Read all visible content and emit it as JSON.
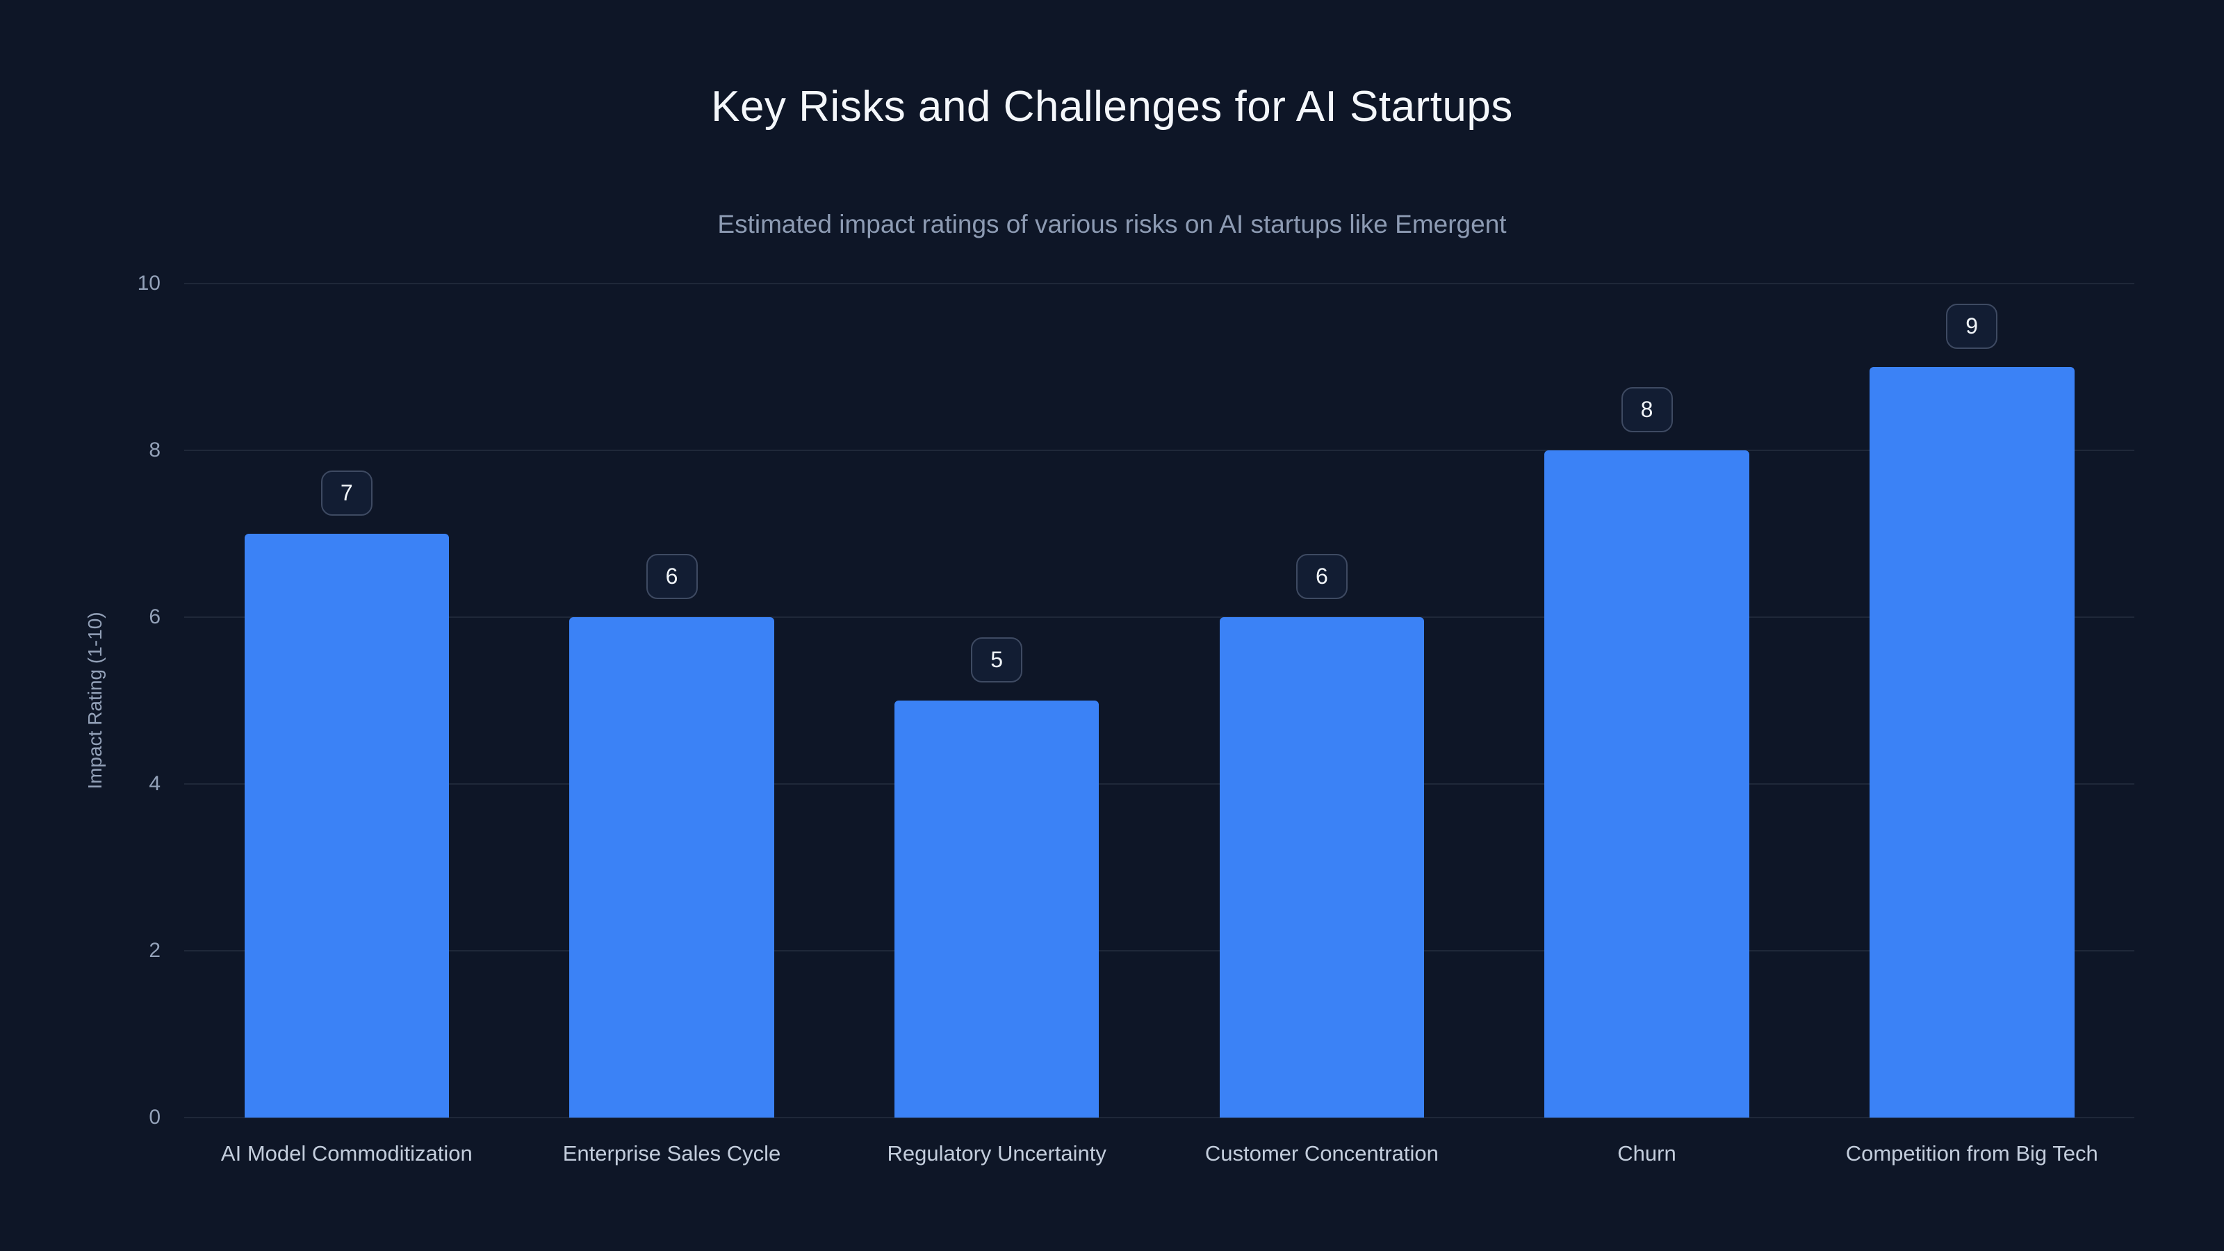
{
  "chart_data": {
    "type": "bar",
    "title": "Key Risks and Challenges for AI Startups",
    "subtitle": "Estimated impact ratings of various risks on AI startups like Emergent",
    "categories": [
      "AI Model Commoditization",
      "Enterprise Sales Cycle",
      "Regulatory Uncertainty",
      "Customer Concentration",
      "Churn",
      "Competition from Big Tech"
    ],
    "values": [
      7,
      6,
      5,
      6,
      8,
      9
    ],
    "value_labels": [
      "7",
      "6",
      "5",
      "6",
      "8",
      "9"
    ],
    "xlabel": "",
    "ylabel": "Impact Rating (1-10)",
    "ylim": [
      0,
      10
    ],
    "yticks": [
      0,
      2,
      4,
      6,
      8,
      10
    ],
    "grid": true,
    "legend_position": "none",
    "colors": {
      "bar": "#3b82f6",
      "background": "#0e1627",
      "grid": "rgba(148,163,184,0.13)",
      "title_text": "#f4f7fb",
      "subtitle_text": "#8d9bb3",
      "axis_text": "#93a1b8",
      "category_text": "#c3cddc",
      "value_chip_border": "#3e4a62",
      "value_chip_text": "#f1f5f9"
    }
  }
}
